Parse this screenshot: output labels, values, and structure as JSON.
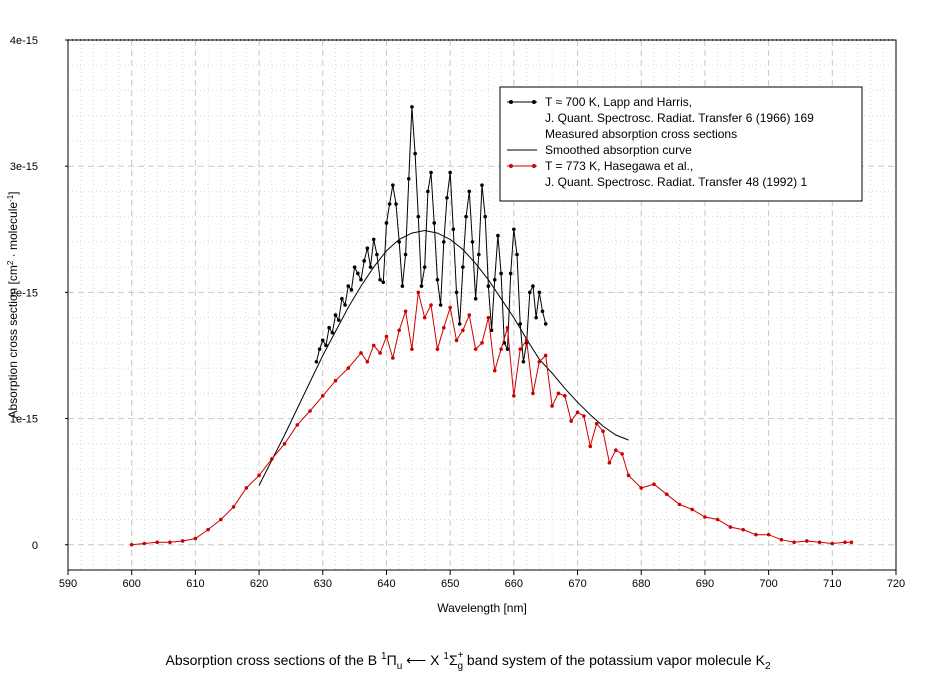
{
  "chart_data": {
    "type": "line",
    "xlabel": "Wavelength [nm]",
    "ylabel": {
      "main": "Absorption cross section [cm",
      "sup1": "2",
      "mid": " · molecule",
      "sup2": "-1",
      "end": "]"
    },
    "xlim": [
      590,
      720
    ],
    "ylim": [
      -2e-16,
      4e-15
    ],
    "x_ticks": [
      590,
      600,
      610,
      620,
      630,
      640,
      650,
      660,
      670,
      680,
      690,
      700,
      710,
      720
    ],
    "x_tick_labels": [
      "590",
      "600",
      "610",
      "620",
      "630",
      "640",
      "650",
      "660",
      "670",
      "680",
      "690",
      "700",
      "710",
      "720"
    ],
    "y_ticks": [
      0,
      1e-15,
      2e-15,
      3e-15,
      4e-15
    ],
    "y_tick_labels": [
      "0",
      "1e-15",
      "2e-15",
      "3e-15",
      "4e-15"
    ],
    "legend": {
      "position": "top-right",
      "entries": [
        "T ≈ 700 K, Lapp and Harris,",
        "J. Quant. Spectrosc. Radiat. Transfer 6 (1966) 169",
        "Measured absorption cross sections",
        "Smoothed absorption curve",
        "T = 773 K, Hasegawa et al.,",
        "J. Quant. Spectrosc. Radiat. Transfer 48 (1992) 1"
      ]
    },
    "caption": {
      "prefix": "Absorption cross sections of the B ",
      "s1": "1",
      "pi": "Π",
      "u": "u",
      "arrow": " ⟵ X ",
      "s2": "1",
      "sigma": "Σ",
      "plus": "+",
      "g": "g",
      "suffix": " band system of the potassium vapor molecule K",
      "k2": "2"
    },
    "series": [
      {
        "name": "Lapp and Harris measured (T ≈ 700 K)",
        "color": "#000000",
        "marker": "dot",
        "x": [
          629.0,
          629.5,
          630.0,
          630.5,
          631.0,
          631.5,
          632.0,
          632.5,
          633.0,
          633.5,
          634.0,
          634.5,
          635.0,
          635.5,
          636.0,
          636.5,
          637.0,
          637.5,
          638.0,
          638.5,
          639.0,
          639.5,
          640.0,
          640.5,
          641.0,
          641.5,
          642.0,
          642.5,
          643.0,
          643.5,
          644.0,
          644.5,
          645.0,
          645.5,
          646.0,
          646.5,
          647.0,
          647.5,
          648.0,
          648.5,
          649.0,
          649.5,
          650.0,
          650.5,
          651.0,
          651.5,
          652.0,
          652.5,
          653.0,
          653.5,
          654.0,
          654.5,
          655.0,
          655.5,
          656.0,
          656.5,
          657.0,
          657.5,
          658.0,
          658.5,
          659.0,
          659.5,
          660.0,
          660.5,
          661.0,
          661.5,
          662.0,
          662.5,
          663.0,
          663.5,
          664.0,
          664.5,
          665.0
        ],
        "y": [
          1.45e-15,
          1.55e-15,
          1.62e-15,
          1.58e-15,
          1.72e-15,
          1.68e-15,
          1.82e-15,
          1.78e-15,
          1.95e-15,
          1.9e-15,
          2.05e-15,
          2.02e-15,
          2.2e-15,
          2.15e-15,
          2.1e-15,
          2.25e-15,
          2.35e-15,
          2.2e-15,
          2.42e-15,
          2.3e-15,
          2.1e-15,
          2.08e-15,
          2.55e-15,
          2.7e-15,
          2.85e-15,
          2.7e-15,
          2.4e-15,
          2.05e-15,
          2.3e-15,
          2.9e-15,
          3.47e-15,
          3.1e-15,
          2.6e-15,
          2.05e-15,
          2.2e-15,
          2.8e-15,
          2.95e-15,
          2.55e-15,
          2.1e-15,
          1.9e-15,
          2.4e-15,
          2.75e-15,
          2.95e-15,
          2.5e-15,
          2e-15,
          1.75e-15,
          2.2e-15,
          2.6e-15,
          2.8e-15,
          2.4e-15,
          1.95e-15,
          2.3e-15,
          2.85e-15,
          2.6e-15,
          2.05e-15,
          1.7e-15,
          2.1e-15,
          2.45e-15,
          2.15e-15,
          1.6e-15,
          1.55e-15,
          2.15e-15,
          2.5e-15,
          2.3e-15,
          1.75e-15,
          1.45e-15,
          1.6e-15,
          2e-15,
          2.05e-15,
          1.8e-15,
          2e-15,
          1.85e-15,
          1.75e-15
        ]
      },
      {
        "name": "Smoothed absorption curve",
        "color": "#000000",
        "marker": "none",
        "x": [
          620,
          622,
          624,
          626,
          628,
          630,
          632,
          634,
          636,
          638,
          640,
          642,
          644,
          646,
          648,
          650,
          652,
          654,
          656,
          658,
          660,
          662,
          664,
          666,
          668,
          670,
          672,
          674,
          676,
          678
        ],
        "y": [
          4.7e-16,
          6.7e-16,
          8.7e-16,
          1.08e-15,
          1.29e-15,
          1.5e-15,
          1.69e-15,
          1.88e-15,
          2.05e-15,
          2.2e-15,
          2.33e-15,
          2.42e-15,
          2.47e-15,
          2.49e-15,
          2.47e-15,
          2.42e-15,
          2.34e-15,
          2.23e-15,
          2.1e-15,
          1.95e-15,
          1.8e-15,
          1.63e-15,
          1.47e-15,
          1.36e-15,
          1.24e-15,
          1.13e-15,
          1.03e-15,
          9.4e-16,
          8.7e-16,
          8.3e-16
        ]
      },
      {
        "name": "Hasegawa et al. (T = 773 K)",
        "color": "#cc0000",
        "marker": "dot",
        "x": [
          600,
          602,
          604,
          606,
          608,
          610,
          612,
          614,
          616,
          618,
          620,
          622,
          624,
          626,
          628,
          630,
          632,
          634,
          636,
          637,
          638,
          639,
          640,
          641,
          642,
          643,
          644,
          645,
          646,
          647,
          648,
          649,
          650,
          651,
          652,
          653,
          654,
          655,
          656,
          657,
          658,
          659,
          660,
          661,
          662,
          663,
          664,
          665,
          666,
          667,
          668,
          669,
          670,
          671,
          672,
          673,
          674,
          675,
          676,
          677,
          678,
          680,
          682,
          684,
          686,
          688,
          690,
          692,
          694,
          696,
          698,
          700,
          702,
          704,
          706,
          708,
          710,
          712,
          713
        ],
        "y": [
          0.0,
          1e-17,
          2e-17,
          2e-17,
          3e-17,
          5e-17,
          1.2e-16,
          2e-16,
          3e-16,
          4.5e-16,
          5.5e-16,
          6.8e-16,
          8e-16,
          9.5e-16,
          1.06e-15,
          1.18e-15,
          1.3e-15,
          1.4e-15,
          1.52e-15,
          1.45e-15,
          1.58e-15,
          1.52e-15,
          1.65e-15,
          1.48e-15,
          1.7e-15,
          1.85e-15,
          1.55e-15,
          2e-15,
          1.8e-15,
          1.9e-15,
          1.55e-15,
          1.72e-15,
          1.88e-15,
          1.62e-15,
          1.7e-15,
          1.82e-15,
          1.55e-15,
          1.6e-15,
          1.8e-15,
          1.38e-15,
          1.55e-15,
          1.72e-15,
          1.18e-15,
          1.55e-15,
          1.62e-15,
          1.2e-15,
          1.45e-15,
          1.5e-15,
          1.1e-15,
          1.2e-15,
          1.18e-15,
          9.8e-16,
          1.05e-15,
          1.02e-15,
          7.8e-16,
          9.6e-16,
          9e-16,
          6.5e-16,
          7.5e-16,
          7.2e-16,
          5.5e-16,
          4.5e-16,
          4.8e-16,
          4e-16,
          3.2e-16,
          2.8e-16,
          2.2e-16,
          2e-16,
          1.4e-16,
          1.2e-16,
          8e-17,
          8e-17,
          4e-17,
          2e-17,
          3e-17,
          2e-17,
          1e-17,
          2e-17,
          2e-17
        ]
      }
    ]
  },
  "colors": {
    "axis": "#000000",
    "grid": "#c8c8c8",
    "series_black": "#000000",
    "series_red": "#cc0000"
  }
}
